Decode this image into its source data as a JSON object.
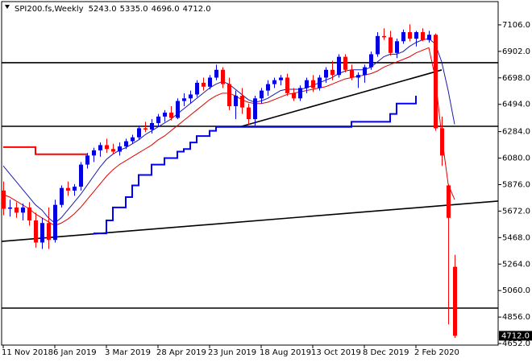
{
  "chart_data": {
    "type": "candlestick",
    "title": "SPI200.fs,Weekly",
    "header_values": [
      "5243.0",
      "5335.0",
      "4696.0",
      "4712.0"
    ],
    "last_label": "4712.0",
    "up_color": "#0000e0",
    "down_color": "#ff0000",
    "ylim": [
      4640,
      7248
    ],
    "yticks": [
      {
        "value": 7106,
        "label": "7106.0"
      },
      {
        "value": 6902,
        "label": "6902.0"
      },
      {
        "value": 6698,
        "label": "6698.0"
      },
      {
        "value": 6494,
        "label": "6494.0"
      },
      {
        "value": 6284,
        "label": "6284.0"
      },
      {
        "value": 6080,
        "label": "6080.0"
      },
      {
        "value": 5876,
        "label": "5876.0"
      },
      {
        "value": 5672,
        "label": "5672.0"
      },
      {
        "value": 5468,
        "label": "5468.0"
      },
      {
        "value": 5264,
        "label": "5264.0"
      },
      {
        "value": 5060,
        "label": "5060.0"
      },
      {
        "value": 4856,
        "label": "4856.0"
      },
      {
        "value": 4652,
        "label": "4652.0"
      }
    ],
    "categories": [
      "11 Nov 2018",
      null,
      null,
      null,
      null,
      null,
      null,
      null,
      "6 Jan 2019",
      null,
      null,
      null,
      null,
      null,
      null,
      null,
      "3 Mar 2019",
      null,
      null,
      null,
      null,
      null,
      null,
      null,
      "28 Apr 2019",
      null,
      null,
      null,
      null,
      null,
      null,
      null,
      "23 Jun 2019",
      null,
      null,
      null,
      null,
      null,
      null,
      null,
      "18 Aug 2019",
      null,
      null,
      null,
      null,
      null,
      null,
      null,
      "13 Oct 2019",
      null,
      null,
      null,
      null,
      null,
      null,
      null,
      "8 Dec 2019",
      null,
      null,
      null,
      null,
      null,
      null,
      null,
      "2 Feb 2020",
      null,
      null,
      null,
      null,
      null,
      null
    ],
    "ohlc": [
      [
        5830,
        5900,
        5640,
        5690
      ],
      [
        5690,
        5760,
        5630,
        5700
      ],
      [
        5700,
        5740,
        5620,
        5660
      ],
      [
        5660,
        5730,
        5600,
        5700
      ],
      [
        5700,
        5740,
        5560,
        5600
      ],
      [
        5600,
        5660,
        5390,
        5430
      ],
      [
        5430,
        5620,
        5380,
        5580
      ],
      [
        5580,
        5700,
        5380,
        5450
      ],
      [
        5450,
        5760,
        5430,
        5720
      ],
      [
        5720,
        5870,
        5700,
        5850
      ],
      [
        5850,
        5900,
        5790,
        5830
      ],
      [
        5830,
        5880,
        5790,
        5860
      ],
      [
        5860,
        6050,
        5830,
        6030
      ],
      [
        6030,
        6120,
        6000,
        6100
      ],
      [
        6100,
        6160,
        6050,
        6140
      ],
      [
        6140,
        6200,
        6090,
        6180
      ],
      [
        6180,
        6230,
        6120,
        6150
      ],
      [
        6150,
        6190,
        6110,
        6130
      ],
      [
        6130,
        6200,
        6100,
        6170
      ],
      [
        6170,
        6230,
        6150,
        6210
      ],
      [
        6210,
        6260,
        6190,
        6240
      ],
      [
        6240,
        6330,
        6220,
        6310
      ],
      [
        6310,
        6360,
        6280,
        6300
      ],
      [
        6300,
        6380,
        6270,
        6350
      ],
      [
        6350,
        6420,
        6320,
        6400
      ],
      [
        6400,
        6450,
        6360,
        6430
      ],
      [
        6430,
        6480,
        6370,
        6390
      ],
      [
        6390,
        6540,
        6380,
        6520
      ],
      [
        6520,
        6580,
        6480,
        6540
      ],
      [
        6540,
        6600,
        6500,
        6570
      ],
      [
        6570,
        6680,
        6550,
        6660
      ],
      [
        6660,
        6700,
        6600,
        6630
      ],
      [
        6630,
        6720,
        6610,
        6700
      ],
      [
        6700,
        6800,
        6680,
        6760
      ],
      [
        6760,
        6780,
        6620,
        6650
      ],
      [
        6650,
        6700,
        6450,
        6480
      ],
      [
        6480,
        6600,
        6380,
        6560
      ],
      [
        6560,
        6620,
        6420,
        6470
      ],
      [
        6470,
        6500,
        6340,
        6380
      ],
      [
        6380,
        6560,
        6330,
        6540
      ],
      [
        6540,
        6620,
        6500,
        6600
      ],
      [
        6600,
        6680,
        6560,
        6650
      ],
      [
        6650,
        6700,
        6620,
        6680
      ],
      [
        6680,
        6720,
        6640,
        6700
      ],
      [
        6700,
        6730,
        6560,
        6580
      ],
      [
        6580,
        6620,
        6520,
        6540
      ],
      [
        6540,
        6640,
        6520,
        6620
      ],
      [
        6620,
        6700,
        6580,
        6680
      ],
      [
        6680,
        6720,
        6590,
        6620
      ],
      [
        6620,
        6720,
        6600,
        6700
      ],
      [
        6700,
        6780,
        6660,
        6760
      ],
      [
        6760,
        6830,
        6680,
        6720
      ],
      [
        6720,
        6880,
        6700,
        6860
      ],
      [
        6860,
        6880,
        6740,
        6760
      ],
      [
        6760,
        6800,
        6680,
        6700
      ],
      [
        6700,
        6740,
        6620,
        6720
      ],
      [
        6720,
        6800,
        6660,
        6780
      ],
      [
        6780,
        6900,
        6760,
        6880
      ],
      [
        6880,
        7050,
        6860,
        7020
      ],
      [
        7020,
        7080,
        6990,
        7010
      ],
      [
        7010,
        7060,
        6870,
        6890
      ],
      [
        6890,
        7000,
        6850,
        6980
      ],
      [
        6980,
        7070,
        6960,
        7050
      ],
      [
        7050,
        7110,
        6980,
        7000
      ],
      [
        7000,
        7060,
        6940,
        7050
      ],
      [
        7050,
        7080,
        6980,
        6990
      ],
      [
        6990,
        7060,
        6970,
        7030
      ],
      [
        7030,
        7040,
        6290,
        6310
      ],
      [
        6310,
        6400,
        6020,
        6100
      ],
      [
        5870,
        5880,
        4800,
        5620
      ],
      [
        5243,
        5335,
        4696,
        4712
      ]
    ],
    "series": [
      {
        "color": "#1a1aa8",
        "style": "line",
        "values": [
          6020,
          5960,
          5900,
          5840,
          5780,
          5720,
          5680,
          5620,
          5580,
          5620,
          5680,
          5740,
          5800,
          5870,
          5940,
          6010,
          6070,
          6110,
          6140,
          6160,
          6190,
          6220,
          6260,
          6290,
          6320,
          6350,
          6380,
          6420,
          6460,
          6500,
          6540,
          6580,
          6620,
          6650,
          6670,
          6650,
          6610,
          6570,
          6530,
          6510,
          6520,
          6540,
          6570,
          6600,
          6610,
          6610,
          6610,
          6620,
          6640,
          6660,
          6680,
          6700,
          6730,
          6750,
          6760,
          6760,
          6760,
          6780,
          6820,
          6860,
          6880,
          6880,
          6900,
          6940,
          6970,
          6990,
          7000,
          6960,
          6820,
          6600,
          6340
        ]
      },
      {
        "color": "#e00000",
        "style": "line",
        "values": [
          5800,
          5780,
          5750,
          5720,
          5690,
          5650,
          5620,
          5590,
          5560,
          5580,
          5610,
          5650,
          5700,
          5760,
          5820,
          5880,
          5940,
          5990,
          6030,
          6060,
          6090,
          6120,
          6150,
          6180,
          6220,
          6250,
          6290,
          6330,
          6370,
          6410,
          6450,
          6490,
          6530,
          6560,
          6580,
          6580,
          6560,
          6530,
          6510,
          6500,
          6500,
          6510,
          6530,
          6550,
          6570,
          6580,
          6590,
          6600,
          6610,
          6620,
          6630,
          6650,
          6670,
          6690,
          6700,
          6710,
          6720,
          6730,
          6750,
          6780,
          6800,
          6820,
          6840,
          6860,
          6890,
          6910,
          6930,
          6700,
          6250,
          5880,
          5760
        ]
      },
      {
        "color": "#0000ff",
        "style": "step",
        "values": [
          null,
          null,
          null,
          null,
          null,
          null,
          null,
          null,
          null,
          null,
          null,
          null,
          null,
          null,
          5500,
          5500,
          5600,
          5700,
          5700,
          5780,
          5870,
          5950,
          5950,
          6030,
          6030,
          6080,
          6080,
          6130,
          6150,
          6200,
          6250,
          6250,
          6290,
          6320,
          6320,
          6320,
          6320,
          6320,
          6320,
          6320,
          6320,
          6320,
          6320,
          6320,
          6320,
          6320,
          6320,
          6320,
          6320,
          6320,
          6320,
          6320,
          6320,
          6320,
          6360,
          6360,
          6360,
          6360,
          6360,
          6360,
          6420,
          6500,
          6500,
          6500,
          6560,
          null,
          null,
          null,
          null,
          null,
          null
        ]
      },
      {
        "color": "#ff0000",
        "style": "step",
        "values": [
          6165,
          6165,
          6165,
          6165,
          6165,
          6110,
          6110,
          6110,
          6110,
          6110,
          6110,
          6110,
          6110,
          6110,
          null,
          null,
          null,
          null,
          null,
          null,
          null,
          null,
          null,
          null,
          null,
          null,
          null,
          null,
          null,
          null,
          null,
          null,
          null,
          null,
          null,
          null,
          null,
          null,
          null,
          null,
          null,
          null,
          null,
          null,
          null,
          null,
          null,
          null,
          null,
          null,
          null,
          null,
          null,
          null,
          null,
          null,
          null,
          null,
          null,
          null,
          null,
          null,
          null,
          null,
          null,
          null,
          null,
          null,
          null,
          null,
          null
        ]
      }
    ],
    "levels": [
      6815,
      6325,
      4925
    ],
    "trendlines": [
      {
        "x": [
          0,
          70
        ],
        "values": [
          5440,
          5722
        ],
        "extend": true
      },
      {
        "x": [
          37,
          68
        ],
        "values": [
          6325,
          6759
        ],
        "extend": false
      }
    ]
  }
}
